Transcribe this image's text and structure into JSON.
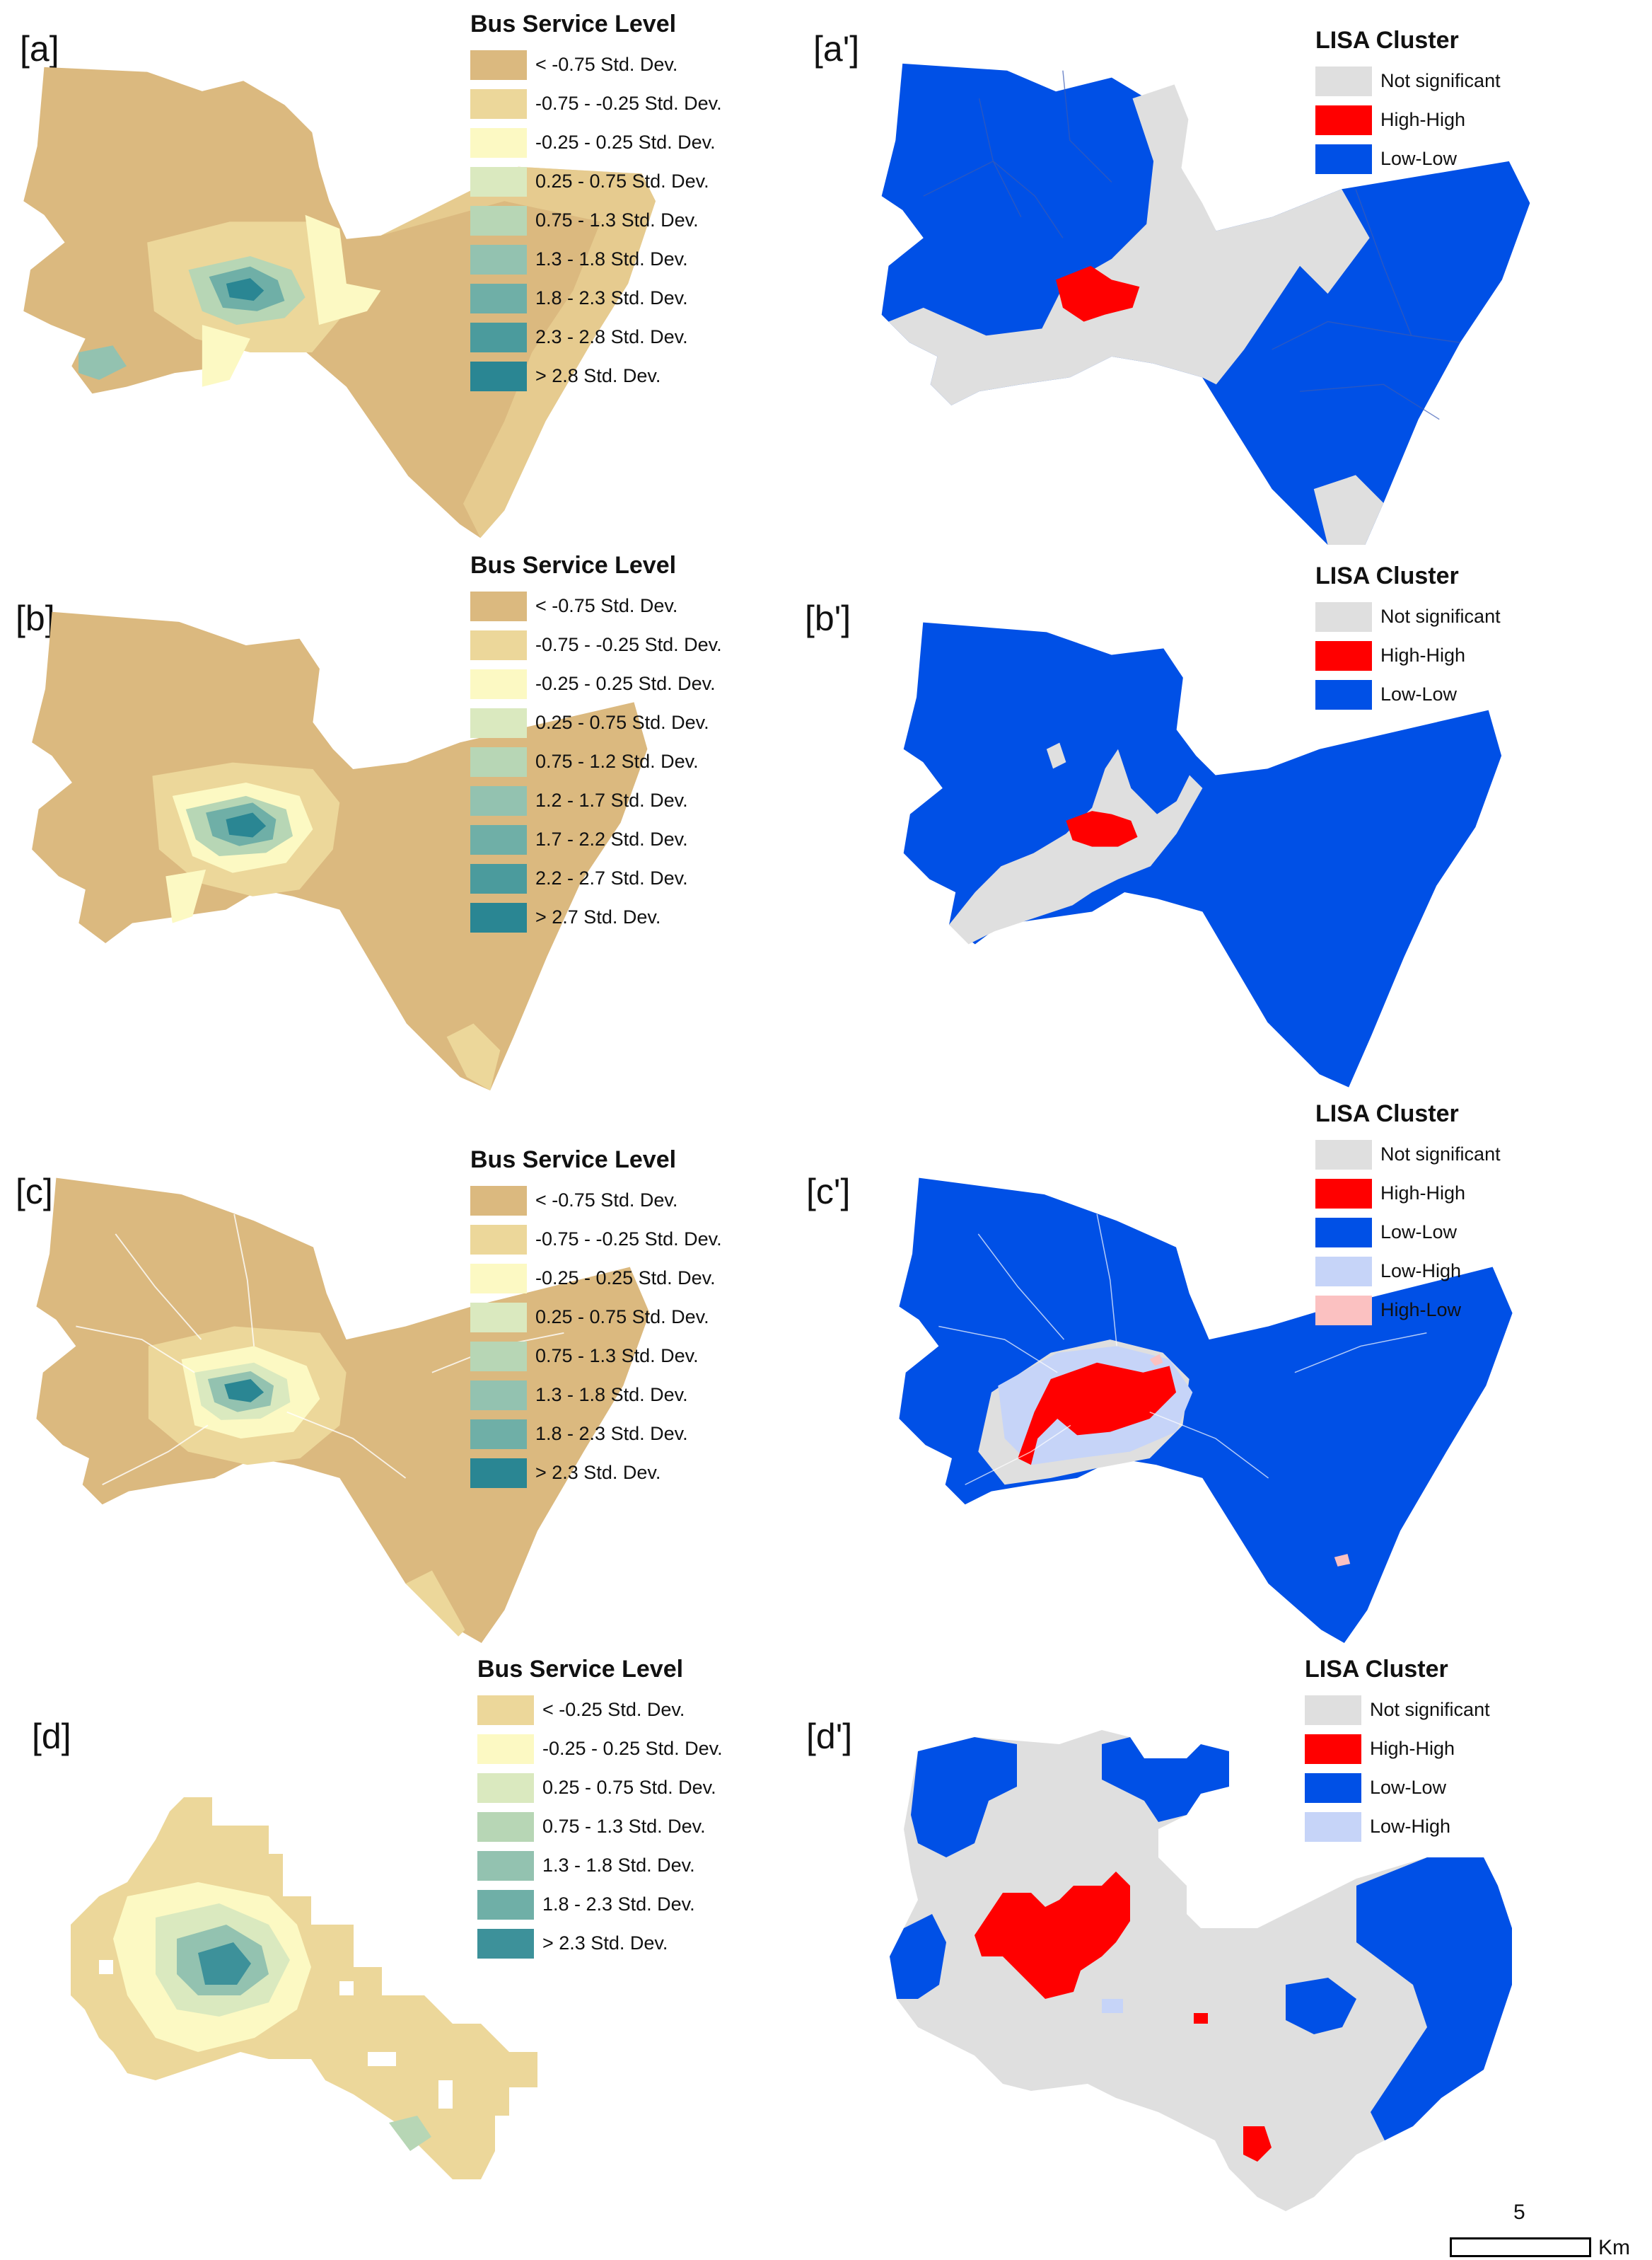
{
  "colors": {
    "bus_ramp": [
      "#dbb97f",
      "#ecd79a",
      "#fcf9c3",
      "#dae9bf",
      "#b7d6b5",
      "#93c2b0",
      "#6fafa7",
      "#4b9b9d",
      "#2a8693"
    ],
    "bus_ramp_d": [
      "#ecd79a",
      "#fcf9c3",
      "#dae9bf",
      "#b7d6b5",
      "#93c2b0",
      "#6fafa7",
      "#3d919a"
    ],
    "lisa": {
      "not_significant": "#dfdfdf",
      "high_high": "#ff0000",
      "low_low": "#0050e6",
      "low_high": "#c6d4f8",
      "high_low": "#fbc1c1"
    }
  },
  "panels": [
    {
      "label": "[a]",
      "legend_title": "Bus Service Level",
      "legend": [
        "< -0.75 Std. Dev.",
        "-0.75 - -0.25 Std. Dev.",
        "-0.25 - 0.25 Std. Dev.",
        "0.25 - 0.75 Std. Dev.",
        "0.75 - 1.3 Std. Dev.",
        "1.3 - 1.8 Std. Dev.",
        "1.8 - 2.3 Std. Dev.",
        "2.3 - 2.8 Std. Dev.",
        "> 2.8 Std. Dev."
      ]
    },
    {
      "label": "[a']",
      "legend_title": "LISA Cluster",
      "legend": [
        "Not significant",
        "High-High",
        "Low-Low"
      ]
    },
    {
      "label": "[b]",
      "legend_title": "Bus Service Level",
      "legend": [
        "< -0.75 Std. Dev.",
        "-0.75 - -0.25 Std. Dev.",
        "-0.25 - 0.25 Std. Dev.",
        "0.25 - 0.75 Std. Dev.",
        "0.75 - 1.2 Std. Dev.",
        "1.2 - 1.7 Std. Dev.",
        "1.7 - 2.2 Std. Dev.",
        "2.2 - 2.7 Std. Dev.",
        "> 2.7 Std. Dev."
      ]
    },
    {
      "label": "[b']",
      "legend_title": "LISA Cluster",
      "legend": [
        "Not significant",
        "High-High",
        "Low-Low"
      ]
    },
    {
      "label": "[c]",
      "legend_title": "Bus Service Level",
      "legend": [
        "< -0.75 Std. Dev.",
        "-0.75 - -0.25 Std. Dev.",
        "-0.25 - 0.25 Std. Dev.",
        "0.25 - 0.75 Std. Dev.",
        "0.75 - 1.3 Std. Dev.",
        "1.3 - 1.8 Std. Dev.",
        "1.8 - 2.3 Std. Dev.",
        "> 2.3 Std. Dev."
      ]
    },
    {
      "label": "[c']",
      "legend_title": "LISA Cluster",
      "legend": [
        "Not significant",
        "High-High",
        "Low-Low",
        "Low-High",
        "High-Low"
      ]
    },
    {
      "label": "[d]",
      "legend_title": "Bus Service Level",
      "legend": [
        "< -0.25 Std. Dev.",
        "-0.25 - 0.25 Std. Dev.",
        "0.25 - 0.75 Std. Dev.",
        "0.75 - 1.3 Std. Dev.",
        "1.3 - 1.8 Std. Dev.",
        "1.8 - 2.3 Std. Dev.",
        "> 2.3 Std. Dev."
      ]
    },
    {
      "label": "[d']",
      "legend_title": "LISA Cluster",
      "legend": [
        "Not significant",
        "High-High",
        "Low-Low",
        "Low-High"
      ]
    }
  ],
  "scale_bar": {
    "value": "5",
    "unit": "Km"
  }
}
